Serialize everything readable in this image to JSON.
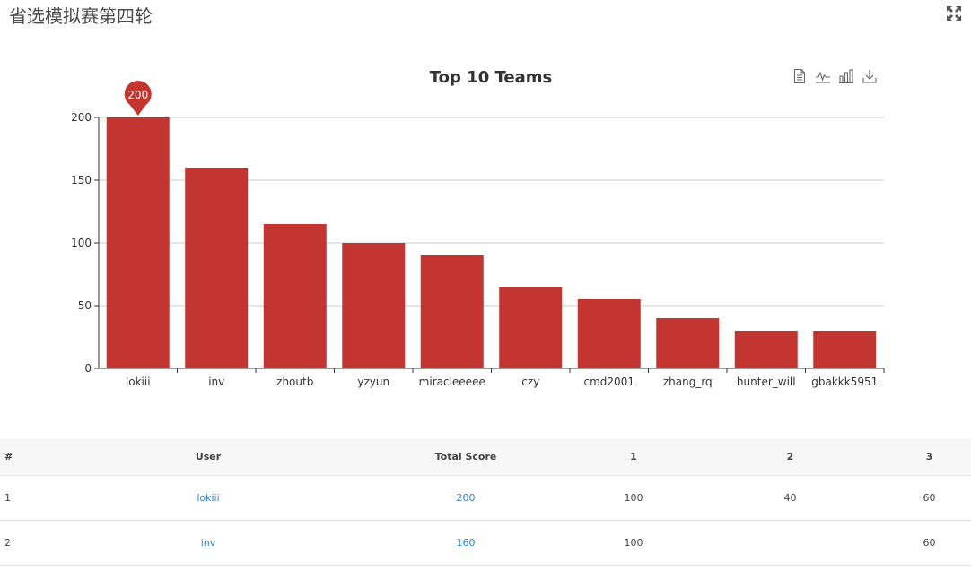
{
  "page": {
    "title": "省选模拟赛第四轮"
  },
  "toolbox": {
    "icons": [
      "data-view-icon",
      "line-chart-icon",
      "bar-chart-icon",
      "download-icon"
    ]
  },
  "chart_data": {
    "type": "bar",
    "title": "Top 10 Teams",
    "categories": [
      "lokiii",
      "inv",
      "zhoutb",
      "yzyun",
      "miracleeeee",
      "czy",
      "cmd2001",
      "zhang_rq",
      "hunter_will",
      "gbakkk5951"
    ],
    "values": [
      200,
      160,
      115,
      100,
      90,
      65,
      55,
      40,
      30,
      30
    ],
    "ylim": [
      0,
      200
    ],
    "yticks": [
      0,
      50,
      100,
      150,
      200
    ],
    "grid": true,
    "bar_color": "#c23531",
    "max_marker": {
      "label": "200",
      "category": "lokiii"
    }
  },
  "table": {
    "headers": [
      "#",
      "User",
      "Total Score",
      "1",
      "2",
      "3"
    ],
    "rows": [
      {
        "rank": "1",
        "user": "lokiii",
        "total": "200",
        "s1": "100",
        "s2": "40",
        "s3": "60"
      },
      {
        "rank": "2",
        "user": "inv",
        "total": "160",
        "s1": "100",
        "s2": "",
        "s3": "60"
      }
    ]
  }
}
